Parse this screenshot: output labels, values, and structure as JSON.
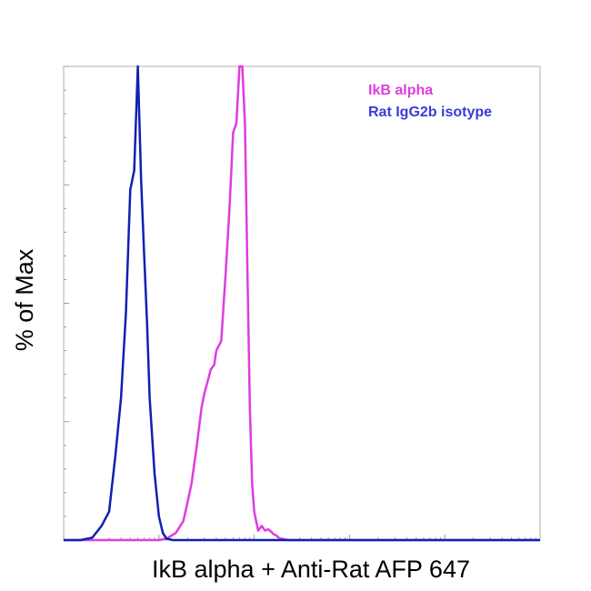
{
  "chart_data": {
    "type": "line",
    "title": "",
    "xlabel": "IkB alpha + Anti-Rat AFP 647",
    "ylabel": "% of Max",
    "x_scale": "log",
    "xlim": [
      1,
      100000
    ],
    "ylim": [
      0,
      100
    ],
    "grid": false,
    "legend_position": "top-right",
    "series": [
      {
        "name": "IkB alpha",
        "color": "#e03ce0",
        "x": [
          1,
          2,
          3,
          5,
          7,
          10,
          12,
          15,
          18,
          20,
          22,
          25,
          28,
          30,
          32,
          35,
          38,
          40,
          45,
          50,
          55,
          60,
          65,
          70,
          75,
          80,
          85,
          90,
          95,
          100,
          110,
          120,
          130,
          140,
          150,
          160,
          170,
          180,
          200,
          230,
          260,
          300,
          1000,
          10000,
          100000
        ],
        "y": [
          0,
          0,
          0,
          0,
          0,
          0,
          0.3,
          1.5,
          4,
          8,
          12,
          20,
          28,
          31,
          33,
          36,
          37,
          40,
          42,
          56,
          70,
          86,
          88,
          100,
          100,
          88,
          56,
          28,
          12,
          6,
          2,
          3,
          2,
          2.3,
          1.8,
          1.2,
          1,
          0.5,
          0.2,
          0,
          0,
          0,
          0,
          0,
          0
        ]
      },
      {
        "name": "Rat IgG2b isotype",
        "color": "#1020b0",
        "x": [
          1,
          1.5,
          2,
          2.5,
          3,
          3.5,
          4,
          4.5,
          5,
          5.5,
          6,
          6.5,
          7,
          7.5,
          8,
          9,
          10,
          11,
          12,
          14,
          16,
          18,
          20,
          25,
          30,
          100000
        ],
        "y": [
          0,
          0,
          0.5,
          3,
          6,
          18,
          30,
          48,
          74,
          78,
          100,
          76,
          60,
          46,
          30,
          14,
          5,
          1.5,
          0.3,
          0,
          0,
          0,
          0,
          0,
          0,
          0
        ]
      }
    ]
  }
}
